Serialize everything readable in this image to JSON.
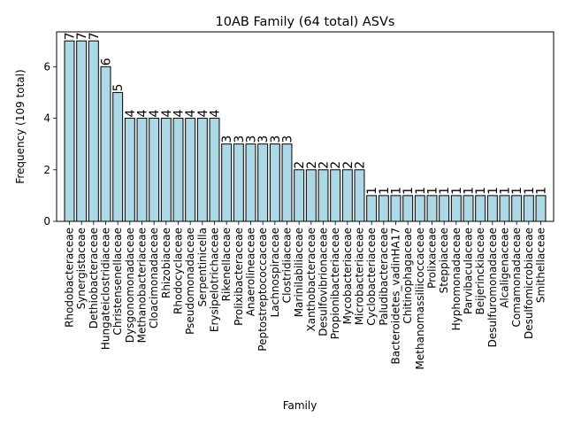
{
  "chart_data": {
    "type": "bar",
    "title": "10AB Family (64 total) ASVs",
    "xlabel": "Family",
    "ylabel": "Frequency (109 total)",
    "ylim": [
      0,
      7.35
    ],
    "yticks": [
      0,
      2,
      4,
      6
    ],
    "grid": false,
    "bar_color": "#add8e6",
    "edge_color": "#000000",
    "categories": [
      "Rhodobacteraceae",
      "Synergistaceae",
      "Dethiobacteraceae",
      "Hungateiclostridiaceae",
      "Christensenellaceae",
      "Dysgonomonadaceae",
      "Methanobacteriaceae",
      "Cloacimonadaceae",
      "Rhizobiaceae",
      "Rhodocyclaceae",
      "Pseudomonadaceae",
      "Serpentinicella",
      "Erysipelotrichaceae",
      "Rikenellaceae",
      "Prolixibacteraceae",
      "Anaerolineaceae",
      "Peptostreptococcaceae",
      "Lachnospiraceae",
      "Clostridiaceae",
      "Marinilabiliaceae",
      "Xanthobacteraceae",
      "Desulfovibrionaceae",
      "Propionibacteriaceae",
      "Mycobacteriaceae",
      "Microbacteriaceae",
      "Cyclobacteriaceae",
      "Paludibacteraceae",
      "Bacteroidetes_vadinHA17",
      "Chitinophagaceae",
      "Methanomassiliicoccaceae",
      "Prolixaceae",
      "Steppiaceae",
      "Hyphomonadaceae",
      "Parvibaculaceae",
      "Beijerinckiaceae",
      "Desulfuromonadaceae",
      "Alcaligenaceae",
      "Comamonadaceae",
      "Desulfomicrobiaceae",
      "Smithellaceae"
    ],
    "values": [
      7,
      7,
      7,
      6,
      5,
      4,
      4,
      4,
      4,
      4,
      4,
      4,
      4,
      3,
      3,
      3,
      3,
      3,
      3,
      2,
      2,
      2,
      2,
      2,
      2,
      1,
      1,
      1,
      1,
      1,
      1,
      1,
      1,
      1,
      1,
      1,
      1,
      1,
      1,
      1
    ]
  }
}
